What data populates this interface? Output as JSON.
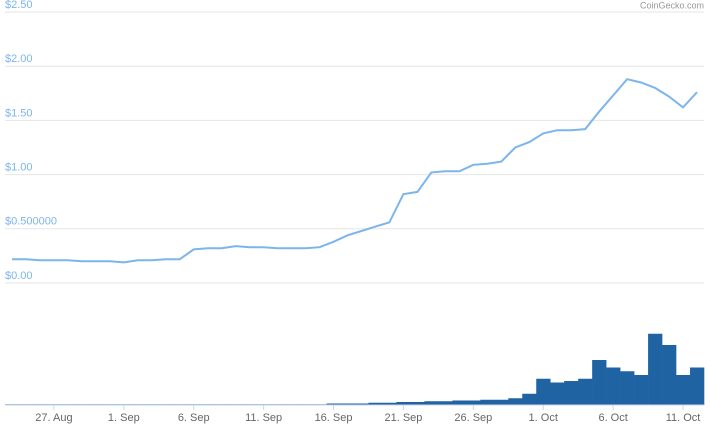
{
  "chart_data": {
    "type": "line",
    "credit": "CoinGecko.com",
    "x": [
      "24. Aug",
      "25. Aug",
      "26. Aug",
      "27. Aug",
      "28. Aug",
      "29. Aug",
      "30. Aug",
      "31. Aug",
      "1. Sep",
      "2. Sep",
      "3. Sep",
      "4. Sep",
      "5. Sep",
      "6. Sep",
      "7. Sep",
      "8. Sep",
      "9. Sep",
      "10. Sep",
      "11. Sep",
      "12. Sep",
      "13. Sep",
      "14. Sep",
      "15. Sep",
      "16. Sep",
      "17. Sep",
      "18. Sep",
      "19. Sep",
      "20. Sep",
      "21. Sep",
      "22. Sep",
      "23. Sep",
      "24. Sep",
      "25. Sep",
      "26. Sep",
      "27. Sep",
      "28. Sep",
      "29. Sep",
      "30. Sep",
      "1. Oct",
      "2. Oct",
      "3. Oct",
      "4. Oct",
      "5. Oct",
      "6. Oct",
      "7. Oct",
      "8. Oct",
      "9. Oct",
      "10. Oct",
      "11. Oct",
      "12. Oct"
    ],
    "values": [
      0.22,
      0.22,
      0.21,
      0.21,
      0.21,
      0.2,
      0.2,
      0.2,
      0.19,
      0.21,
      0.21,
      0.22,
      0.22,
      0.31,
      0.32,
      0.32,
      0.34,
      0.33,
      0.33,
      0.32,
      0.32,
      0.32,
      0.33,
      0.38,
      0.44,
      0.48,
      0.52,
      0.56,
      0.82,
      0.84,
      1.02,
      1.03,
      1.03,
      1.09,
      1.1,
      1.12,
      1.25,
      1.3,
      1.38,
      1.41,
      1.41,
      1.42,
      1.58,
      1.73,
      1.88,
      1.85,
      1.8,
      1.72,
      1.62,
      1.76
    ],
    "color": "#7cb5ec",
    "volume": [
      1,
      1,
      1,
      1,
      1,
      1,
      1,
      1,
      1,
      1,
      1,
      1,
      1,
      1,
      1,
      1,
      1,
      1,
      1,
      1,
      1,
      1,
      1,
      2,
      2,
      2,
      3,
      3,
      4,
      4,
      5,
      5,
      6,
      6,
      7,
      7,
      9,
      15,
      35,
      30,
      32,
      35,
      60,
      50,
      45,
      40,
      95,
      80,
      40,
      50
    ],
    "volume_color": "#1f63a3",
    "ylim": [
      0,
      2.5
    ],
    "yticks": [
      {
        "value": 0,
        "label": "$0.00"
      },
      {
        "value": 0.5,
        "label": "$0.500000"
      },
      {
        "value": 1,
        "label": "$1.00"
      },
      {
        "value": 1.5,
        "label": "$1.50"
      },
      {
        "value": 2,
        "label": "$2.00"
      },
      {
        "value": 2.5,
        "label": "$2.50"
      }
    ],
    "y2lim": [
      0,
      100
    ],
    "xticks": [
      "27. Aug",
      "1. Sep",
      "6. Sep",
      "11. Sep",
      "16. Sep",
      "21. Sep",
      "26. Sep",
      "1. Oct",
      "6. Oct",
      "11. Oct"
    ],
    "grid": true
  }
}
